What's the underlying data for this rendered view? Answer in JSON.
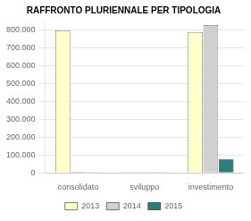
{
  "chart_data": {
    "type": "bar",
    "title": "RAFFRONTO PLURIENNALE PER TIPOLOGIA",
    "categories": [
      "consolidato",
      "sviluppo",
      "investimento"
    ],
    "series": [
      {
        "name": "2013",
        "color": "#FFFFCC",
        "values": [
          800000,
          3000,
          790000
        ]
      },
      {
        "name": "2014",
        "color": "#D0D0D0",
        "values": [
          5000,
          3000,
          830000
        ]
      },
      {
        "name": "2015",
        "color": "#2E7D7D",
        "values": [
          3000,
          3000,
          78000
        ]
      }
    ],
    "ylim": [
      0,
      850000
    ],
    "yticks": [
      0,
      {
        "value": 100000,
        "label": "100.000"
      },
      {
        "value": 200000,
        "label": "200.000"
      },
      {
        "value": 300000,
        "label": "300.000"
      },
      {
        "value": 400000,
        "label": "400.000"
      },
      {
        "value": 500000,
        "label": "500.000"
      },
      {
        "value": 600000,
        "label": "600.000"
      },
      {
        "value": 700000,
        "label": "700.000"
      },
      {
        "value": 800000,
        "label": "800.000"
      }
    ],
    "grid": true,
    "legend": "bottom"
  }
}
